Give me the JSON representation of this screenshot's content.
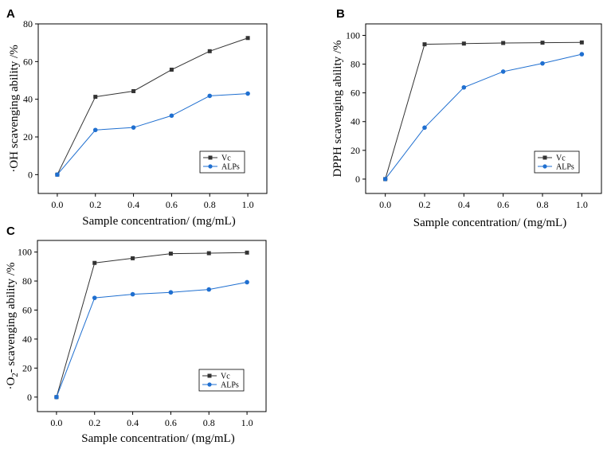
{
  "figure_title": "",
  "chart_data": [
    {
      "panel": "A",
      "type": "line",
      "title": "",
      "xlabel": "Sample concentration/ (mg/mL)",
      "ylabel": "·OH scavenging ability /%",
      "ylabel_superscript": "",
      "ylabel_rest": "",
      "x": [
        0.0,
        0.2,
        0.4,
        0.6,
        0.8,
        1.0
      ],
      "xticks": [
        "0.0",
        "0.2",
        "0.4",
        "0.6",
        "0.8",
        "1.0"
      ],
      "yticks": [
        "0",
        "20",
        "40",
        "60",
        "80"
      ],
      "yticks_values": [
        0,
        20,
        40,
        60,
        80
      ],
      "xlim": [
        -0.1,
        1.1
      ],
      "ylim": [
        -10,
        80
      ],
      "grid": false,
      "legend_position": "bottom-right",
      "series": [
        {
          "name": "Vc",
          "marker": "square",
          "color": "#333333",
          "values": [
            0,
            41.3,
            44.3,
            55.7,
            65.5,
            72.5
          ]
        },
        {
          "name": "ALPs",
          "marker": "circle",
          "color": "#1f6fd0",
          "values": [
            0,
            23.7,
            25.0,
            31.3,
            41.8,
            43.0
          ]
        }
      ]
    },
    {
      "panel": "B",
      "type": "line",
      "title": "",
      "xlabel": "Sample concentration/ (mg/mL)",
      "ylabel": "DPPH scavenging ability /%",
      "ylabel_superscript": "",
      "ylabel_rest": "",
      "x": [
        0.0,
        0.2,
        0.4,
        0.6,
        0.8,
        1.0
      ],
      "xticks": [
        "0.0",
        "0.2",
        "0.4",
        "0.6",
        "0.8",
        "1.0"
      ],
      "yticks": [
        "0",
        "20",
        "40",
        "60",
        "80",
        "100"
      ],
      "yticks_values": [
        0,
        20,
        40,
        60,
        80,
        100
      ],
      "xlim": [
        -0.1,
        1.1
      ],
      "ylim": [
        -10,
        108
      ],
      "grid": false,
      "legend_position": "bottom-right",
      "series": [
        {
          "name": "Vc",
          "marker": "square",
          "color": "#333333",
          "values": [
            0,
            93.8,
            94.3,
            94.7,
            94.9,
            95.1
          ]
        },
        {
          "name": "ALPs",
          "marker": "circle",
          "color": "#1f6fd0",
          "values": [
            0,
            35.8,
            63.8,
            74.8,
            80.5,
            86.9
          ]
        }
      ]
    },
    {
      "panel": "C",
      "type": "line",
      "title": "",
      "xlabel": "Sample concentration/ (mg/mL)",
      "ylabel": "·O",
      "ylabel_superscript": "2",
      "ylabel_rest": "- scavenging ability /%",
      "x": [
        0.0,
        0.2,
        0.4,
        0.6,
        0.8,
        1.0
      ],
      "xticks": [
        "0.0",
        "0.2",
        "0.4",
        "0.6",
        "0.8",
        "1.0"
      ],
      "yticks": [
        "0",
        "20",
        "40",
        "60",
        "80",
        "100"
      ],
      "yticks_values": [
        0,
        20,
        40,
        60,
        80,
        100
      ],
      "xlim": [
        -0.1,
        1.1
      ],
      "ylim": [
        -10,
        108
      ],
      "grid": false,
      "legend_position": "bottom-right",
      "series": [
        {
          "name": "Vc",
          "marker": "square",
          "color": "#333333",
          "values": [
            0,
            92.5,
            95.7,
            98.9,
            99.2,
            99.6
          ]
        },
        {
          "name": "ALPs",
          "marker": "circle",
          "color": "#1f6fd0",
          "values": [
            0,
            68.4,
            70.9,
            72.2,
            74.2,
            79.2
          ]
        }
      ]
    }
  ]
}
